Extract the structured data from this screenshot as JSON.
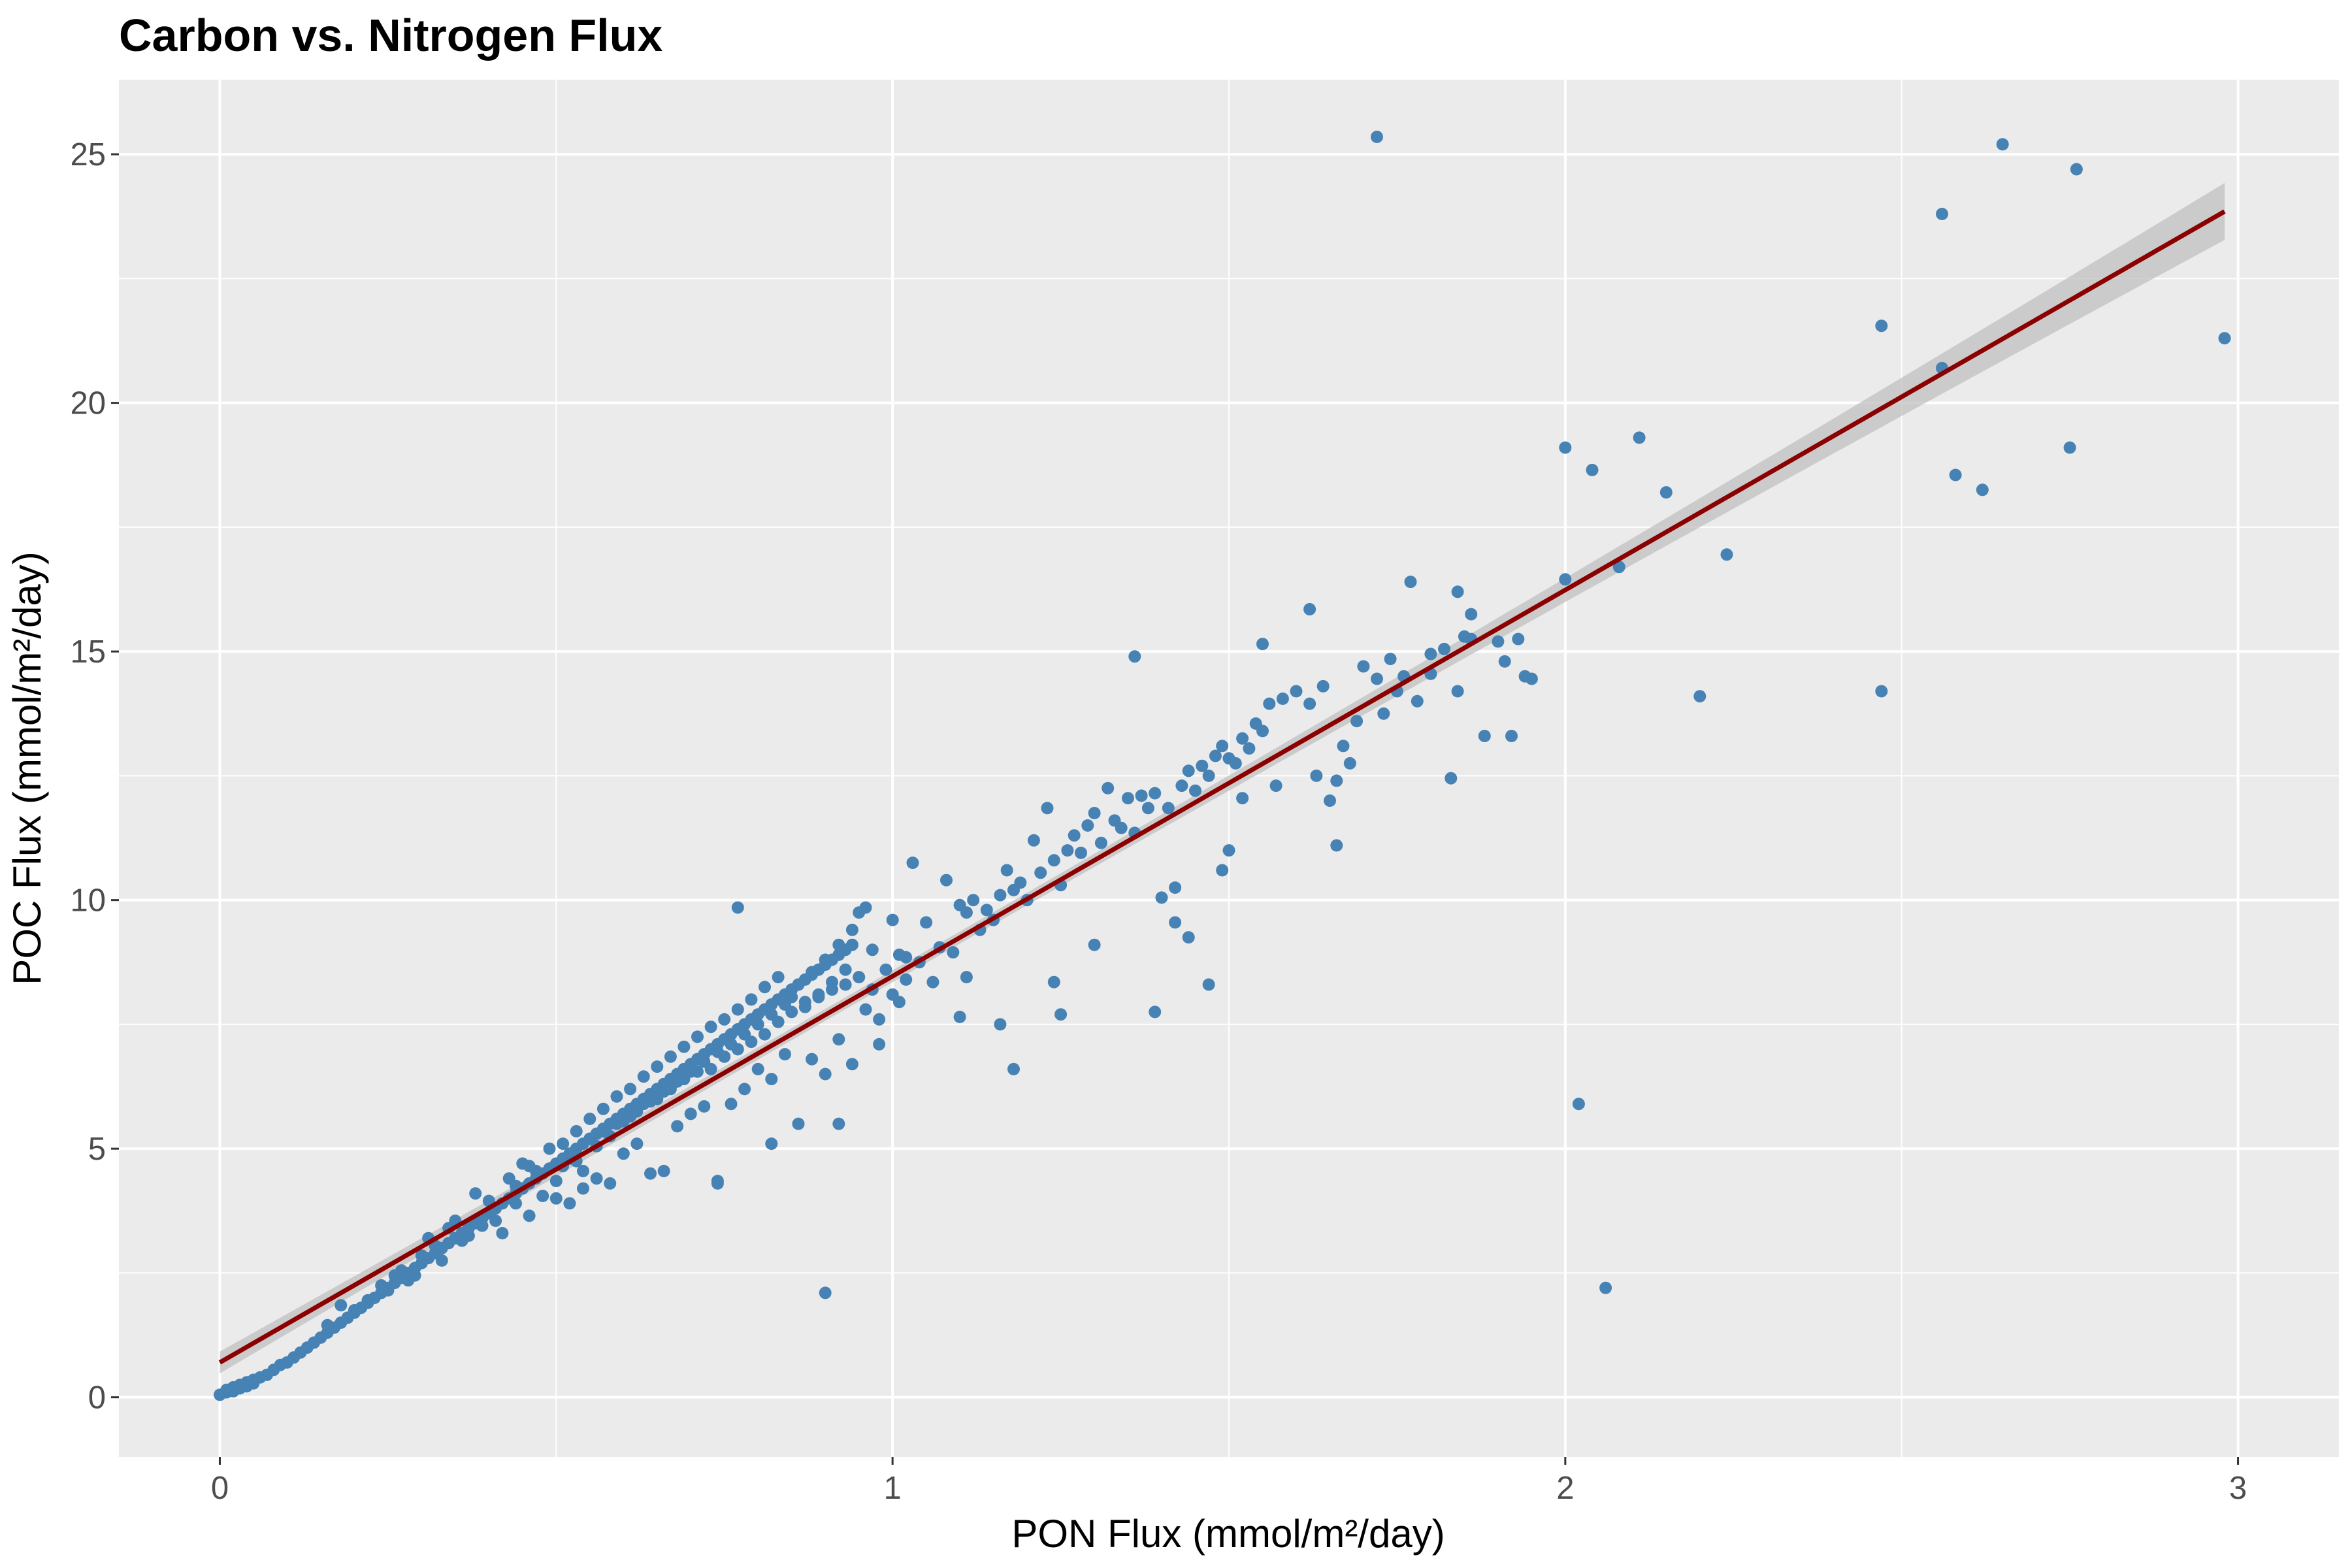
{
  "chart_data": {
    "type": "scatter",
    "title": "Carbon vs. Nitrogen Flux",
    "xlabel": "PON Flux (mmol/m²/day)",
    "ylabel": "POC Flux (mmol/m²/day)",
    "xlim": [
      -0.15,
      3.15
    ],
    "ylim": [
      -1.2,
      26.5
    ],
    "x_ticks": [
      "0",
      "1",
      "2",
      "3"
    ],
    "y_ticks": [
      "0",
      "5",
      "10",
      "15",
      "20",
      "25"
    ],
    "grid": true,
    "legend": "none",
    "colors": {
      "panel": "#ebebeb",
      "grid": "#ffffff",
      "points": "#4682b4",
      "trend": "#8b0000",
      "band": "#c0c0c0",
      "tick_text": "#4d4d4d"
    },
    "trend_line": {
      "x": [
        0,
        2.98
      ],
      "y": [
        0.7,
        23.85
      ]
    },
    "points": [
      [
        0.0,
        0.05
      ],
      [
        0.01,
        0.1
      ],
      [
        0.01,
        0.15
      ],
      [
        0.02,
        0.12
      ],
      [
        0.02,
        0.2
      ],
      [
        0.03,
        0.25
      ],
      [
        0.03,
        0.18
      ],
      [
        0.04,
        0.3
      ],
      [
        0.04,
        0.22
      ],
      [
        0.05,
        0.35
      ],
      [
        0.05,
        0.28
      ],
      [
        0.06,
        0.4
      ],
      [
        0.07,
        0.45
      ],
      [
        0.08,
        0.55
      ],
      [
        0.09,
        0.65
      ],
      [
        0.1,
        0.7
      ],
      [
        0.11,
        0.8
      ],
      [
        0.12,
        0.9
      ],
      [
        0.13,
        1.0
      ],
      [
        0.14,
        1.1
      ],
      [
        0.15,
        1.2
      ],
      [
        0.16,
        1.3
      ],
      [
        0.17,
        1.4
      ],
      [
        0.18,
        1.5
      ],
      [
        0.19,
        1.6
      ],
      [
        0.2,
        1.7
      ],
      [
        0.21,
        1.8
      ],
      [
        0.22,
        1.9
      ],
      [
        0.23,
        2.0
      ],
      [
        0.24,
        2.1
      ],
      [
        0.25,
        2.2
      ],
      [
        0.26,
        2.3
      ],
      [
        0.27,
        2.4
      ],
      [
        0.28,
        2.5
      ],
      [
        0.29,
        2.6
      ],
      [
        0.3,
        2.7
      ],
      [
        0.31,
        2.8
      ],
      [
        0.32,
        2.9
      ],
      [
        0.33,
        3.0
      ],
      [
        0.34,
        3.1
      ],
      [
        0.35,
        3.2
      ],
      [
        0.36,
        3.3
      ],
      [
        0.37,
        3.4
      ],
      [
        0.38,
        3.5
      ],
      [
        0.39,
        3.6
      ],
      [
        0.4,
        3.7
      ],
      [
        0.41,
        3.8
      ],
      [
        0.42,
        3.9
      ],
      [
        0.43,
        4.0
      ],
      [
        0.44,
        4.1
      ],
      [
        0.45,
        4.2
      ],
      [
        0.46,
        4.3
      ],
      [
        0.47,
        4.4
      ],
      [
        0.48,
        4.5
      ],
      [
        0.49,
        4.6
      ],
      [
        0.5,
        4.7
      ],
      [
        0.51,
        4.8
      ],
      [
        0.52,
        4.9
      ],
      [
        0.53,
        5.0
      ],
      [
        0.54,
        5.1
      ],
      [
        0.55,
        5.2
      ],
      [
        0.56,
        5.3
      ],
      [
        0.57,
        5.4
      ],
      [
        0.58,
        5.5
      ],
      [
        0.59,
        5.6
      ],
      [
        0.6,
        5.7
      ],
      [
        0.61,
        5.8
      ],
      [
        0.62,
        5.9
      ],
      [
        0.63,
        6.0
      ],
      [
        0.64,
        6.1
      ],
      [
        0.65,
        6.2
      ],
      [
        0.66,
        6.3
      ],
      [
        0.67,
        6.4
      ],
      [
        0.68,
        6.5
      ],
      [
        0.69,
        6.6
      ],
      [
        0.7,
        6.7
      ],
      [
        0.71,
        6.8
      ],
      [
        0.72,
        6.9
      ],
      [
        0.73,
        7.0
      ],
      [
        0.74,
        7.1
      ],
      [
        0.75,
        7.2
      ],
      [
        0.76,
        7.3
      ],
      [
        0.77,
        7.4
      ],
      [
        0.78,
        7.5
      ],
      [
        0.79,
        7.6
      ],
      [
        0.8,
        7.7
      ],
      [
        0.81,
        7.8
      ],
      [
        0.82,
        7.9
      ],
      [
        0.83,
        8.0
      ],
      [
        0.84,
        8.1
      ],
      [
        0.85,
        8.2
      ],
      [
        0.86,
        8.3
      ],
      [
        0.87,
        8.4
      ],
      [
        0.88,
        8.5
      ],
      [
        0.89,
        8.6
      ],
      [
        0.9,
        8.7
      ],
      [
        0.91,
        8.8
      ],
      [
        0.92,
        8.9
      ],
      [
        0.93,
        9.0
      ],
      [
        0.94,
        9.1
      ],
      [
        0.16,
        1.45
      ],
      [
        0.18,
        1.85
      ],
      [
        0.2,
        1.75
      ],
      [
        0.22,
        1.95
      ],
      [
        0.24,
        2.25
      ],
      [
        0.26,
        2.45
      ],
      [
        0.28,
        2.35
      ],
      [
        0.3,
        2.85
      ],
      [
        0.31,
        3.2
      ],
      [
        0.33,
        2.75
      ],
      [
        0.34,
        3.4
      ],
      [
        0.35,
        3.55
      ],
      [
        0.36,
        3.15
      ],
      [
        0.38,
        4.1
      ],
      [
        0.39,
        3.45
      ],
      [
        0.4,
        3.95
      ],
      [
        0.41,
        3.55
      ],
      [
        0.42,
        3.3
      ],
      [
        0.43,
        4.4
      ],
      [
        0.44,
        3.9
      ],
      [
        0.45,
        4.7
      ],
      [
        0.46,
        3.65
      ],
      [
        0.47,
        4.55
      ],
      [
        0.48,
        4.05
      ],
      [
        0.49,
        5.0
      ],
      [
        0.5,
        4.35
      ],
      [
        0.51,
        5.1
      ],
      [
        0.52,
        4.8
      ],
      [
        0.53,
        5.35
      ],
      [
        0.54,
        4.55
      ],
      [
        0.55,
        5.6
      ],
      [
        0.56,
        5.05
      ],
      [
        0.57,
        5.8
      ],
      [
        0.58,
        5.25
      ],
      [
        0.59,
        6.05
      ],
      [
        0.6,
        5.55
      ],
      [
        0.61,
        6.2
      ],
      [
        0.62,
        5.75
      ],
      [
        0.63,
        6.45
      ],
      [
        0.64,
        5.95
      ],
      [
        0.65,
        6.65
      ],
      [
        0.66,
        6.15
      ],
      [
        0.67,
        6.85
      ],
      [
        0.68,
        6.35
      ],
      [
        0.69,
        7.05
      ],
      [
        0.7,
        6.55
      ],
      [
        0.71,
        7.25
      ],
      [
        0.72,
        6.75
      ],
      [
        0.73,
        7.45
      ],
      [
        0.74,
        6.95
      ],
      [
        0.75,
        7.6
      ],
      [
        0.76,
        7.1
      ],
      [
        0.77,
        7.8
      ],
      [
        0.78,
        7.3
      ],
      [
        0.79,
        8.0
      ],
      [
        0.8,
        7.5
      ],
      [
        0.81,
        8.25
      ],
      [
        0.82,
        7.7
      ],
      [
        0.83,
        8.45
      ],
      [
        0.84,
        7.9
      ],
      [
        0.85,
        8.05
      ],
      [
        0.86,
        8.3
      ],
      [
        0.87,
        7.85
      ],
      [
        0.88,
        8.55
      ],
      [
        0.89,
        8.1
      ],
      [
        0.9,
        8.8
      ],
      [
        0.91,
        8.35
      ],
      [
        0.92,
        9.1
      ],
      [
        0.93,
        8.6
      ],
      [
        0.94,
        9.4
      ],
      [
        0.5,
        4.0
      ],
      [
        0.52,
        3.9
      ],
      [
        0.54,
        4.2
      ],
      [
        0.56,
        4.4
      ],
      [
        0.58,
        4.3
      ],
      [
        0.6,
        4.9
      ],
      [
        0.62,
        5.1
      ],
      [
        0.64,
        4.5
      ],
      [
        0.66,
        4.55
      ],
      [
        0.68,
        5.45
      ],
      [
        0.7,
        5.7
      ],
      [
        0.72,
        5.85
      ],
      [
        0.74,
        4.35
      ],
      [
        0.76,
        5.9
      ],
      [
        0.78,
        6.2
      ],
      [
        0.8,
        6.6
      ],
      [
        0.82,
        6.4
      ],
      [
        0.84,
        6.9
      ],
      [
        0.86,
        5.5
      ],
      [
        0.88,
        6.8
      ],
      [
        0.9,
        6.5
      ],
      [
        0.92,
        7.2
      ],
      [
        0.94,
        6.7
      ],
      [
        0.96,
        7.8
      ],
      [
        0.97,
        8.2
      ],
      [
        0.98,
        7.6
      ],
      [
        0.99,
        8.6
      ],
      [
        1.0,
        8.1
      ],
      [
        1.01,
        8.9
      ],
      [
        1.02,
        8.4
      ],
      [
        0.25,
        2.15
      ],
      [
        0.27,
        2.55
      ],
      [
        0.29,
        2.45
      ],
      [
        0.32,
        3.05
      ],
      [
        0.37,
        3.25
      ],
      [
        0.44,
        4.25
      ],
      [
        0.46,
        4.65
      ],
      [
        0.51,
        4.65
      ],
      [
        0.53,
        4.75
      ],
      [
        0.55,
        5.2
      ],
      [
        0.57,
        5.35
      ],
      [
        0.59,
        5.5
      ],
      [
        0.61,
        5.65
      ],
      [
        0.63,
        5.9
      ],
      [
        0.65,
        6.0
      ],
      [
        0.67,
        6.2
      ],
      [
        0.69,
        6.4
      ],
      [
        0.71,
        6.55
      ],
      [
        0.73,
        6.6
      ],
      [
        0.75,
        6.85
      ],
      [
        0.77,
        7.0
      ],
      [
        0.79,
        7.15
      ],
      [
        0.81,
        7.3
      ],
      [
        0.83,
        7.55
      ],
      [
        0.85,
        7.75
      ],
      [
        0.87,
        7.95
      ],
      [
        0.89,
        8.05
      ],
      [
        0.91,
        8.2
      ],
      [
        0.93,
        8.3
      ],
      [
        0.95,
        8.45
      ],
      [
        0.96,
        9.85
      ],
      [
        0.97,
        9.0
      ],
      [
        0.98,
        7.1
      ],
      [
        1.0,
        9.6
      ],
      [
        1.01,
        7.95
      ],
      [
        1.02,
        8.85
      ],
      [
        1.03,
        10.75
      ],
      [
        1.04,
        8.75
      ],
      [
        1.05,
        9.55
      ],
      [
        1.06,
        8.35
      ],
      [
        1.07,
        9.05
      ],
      [
        1.08,
        10.4
      ],
      [
        1.09,
        8.95
      ],
      [
        1.1,
        9.9
      ],
      [
        1.11,
        9.75
      ],
      [
        1.12,
        10.0
      ],
      [
        1.13,
        9.4
      ],
      [
        1.14,
        9.8
      ],
      [
        1.15,
        9.6
      ],
      [
        1.16,
        10.1
      ],
      [
        1.17,
        10.6
      ],
      [
        1.18,
        10.2
      ],
      [
        1.19,
        10.35
      ],
      [
        1.2,
        10.0
      ],
      [
        1.21,
        11.2
      ],
      [
        1.22,
        10.55
      ],
      [
        1.23,
        11.85
      ],
      [
        1.24,
        10.8
      ],
      [
        1.25,
        10.3
      ],
      [
        1.26,
        11.0
      ],
      [
        1.27,
        11.3
      ],
      [
        1.28,
        10.95
      ],
      [
        1.29,
        11.5
      ],
      [
        1.3,
        11.75
      ],
      [
        1.31,
        11.15
      ],
      [
        1.32,
        12.25
      ],
      [
        1.33,
        11.6
      ],
      [
        1.34,
        11.45
      ],
      [
        1.35,
        12.05
      ],
      [
        1.36,
        11.35
      ],
      [
        1.37,
        12.1
      ],
      [
        1.38,
        11.85
      ],
      [
        1.39,
        12.15
      ],
      [
        1.4,
        10.05
      ],
      [
        1.41,
        11.85
      ],
      [
        1.42,
        10.25
      ],
      [
        1.43,
        12.3
      ],
      [
        1.44,
        12.6
      ],
      [
        1.45,
        12.2
      ],
      [
        1.46,
        12.7
      ],
      [
        1.47,
        12.5
      ],
      [
        1.48,
        12.9
      ],
      [
        1.49,
        13.1
      ],
      [
        1.5,
        12.85
      ],
      [
        1.51,
        12.75
      ],
      [
        1.52,
        13.25
      ],
      [
        1.53,
        13.05
      ],
      [
        1.54,
        13.55
      ],
      [
        1.55,
        13.4
      ],
      [
        1.56,
        13.95
      ],
      [
        1.58,
        14.05
      ],
      [
        1.6,
        14.2
      ],
      [
        1.62,
        13.95
      ],
      [
        1.63,
        12.5
      ],
      [
        1.64,
        14.3
      ],
      [
        1.65,
        12.0
      ],
      [
        1.66,
        12.4
      ],
      [
        1.67,
        13.1
      ],
      [
        1.68,
        12.75
      ],
      [
        1.69,
        13.6
      ],
      [
        1.7,
        14.7
      ],
      [
        1.72,
        14.45
      ],
      [
        1.73,
        13.75
      ],
      [
        1.74,
        14.85
      ],
      [
        1.75,
        14.2
      ],
      [
        1.76,
        14.5
      ],
      [
        1.78,
        14.0
      ],
      [
        1.8,
        14.55
      ],
      [
        1.82,
        15.05
      ],
      [
        1.83,
        12.45
      ],
      [
        1.84,
        14.2
      ],
      [
        1.85,
        15.3
      ],
      [
        1.86,
        15.25
      ],
      [
        1.88,
        13.3
      ],
      [
        1.9,
        15.2
      ],
      [
        1.91,
        14.8
      ],
      [
        1.92,
        13.3
      ],
      [
        1.93,
        15.25
      ],
      [
        1.94,
        14.5
      ],
      [
        1.95,
        14.45
      ],
      [
        0.9,
        2.1
      ],
      [
        0.74,
        4.3
      ],
      [
        0.92,
        5.5
      ],
      [
        0.82,
        5.1
      ],
      [
        0.77,
        9.85
      ],
      [
        0.95,
        9.75
      ],
      [
        1.18,
        6.6
      ],
      [
        1.25,
        7.7
      ],
      [
        1.24,
        8.35
      ],
      [
        1.39,
        7.75
      ],
      [
        1.47,
        8.3
      ],
      [
        1.44,
        9.25
      ],
      [
        1.42,
        9.55
      ],
      [
        1.3,
        9.1
      ],
      [
        1.1,
        7.65
      ],
      [
        1.11,
        8.45
      ],
      [
        1.16,
        7.5
      ],
      [
        1.36,
        14.9
      ],
      [
        1.62,
        15.85
      ],
      [
        1.55,
        15.15
      ],
      [
        1.77,
        16.4
      ],
      [
        1.84,
        16.2
      ],
      [
        1.86,
        15.75
      ],
      [
        1.72,
        25.35
      ],
      [
        2.0,
        19.1
      ],
      [
        2.04,
        18.65
      ],
      [
        2.11,
        19.3
      ],
      [
        2.15,
        18.2
      ],
      [
        2.0,
        16.45
      ],
      [
        2.08,
        16.7
      ],
      [
        2.24,
        16.95
      ],
      [
        2.2,
        14.1
      ],
      [
        2.47,
        14.2
      ],
      [
        2.47,
        21.55
      ],
      [
        2.56,
        23.8
      ],
      [
        2.65,
        25.2
      ],
      [
        2.76,
        24.7
      ],
      [
        2.56,
        20.7
      ],
      [
        2.58,
        18.55
      ],
      [
        2.62,
        18.25
      ],
      [
        2.75,
        19.1
      ],
      [
        2.98,
        21.3
      ],
      [
        2.02,
        5.9
      ],
      [
        2.06,
        2.2
      ],
      [
        1.8,
        14.95
      ],
      [
        1.66,
        11.1
      ],
      [
        1.49,
        10.6
      ],
      [
        1.5,
        11.0
      ],
      [
        1.52,
        12.05
      ],
      [
        1.57,
        12.3
      ]
    ]
  }
}
